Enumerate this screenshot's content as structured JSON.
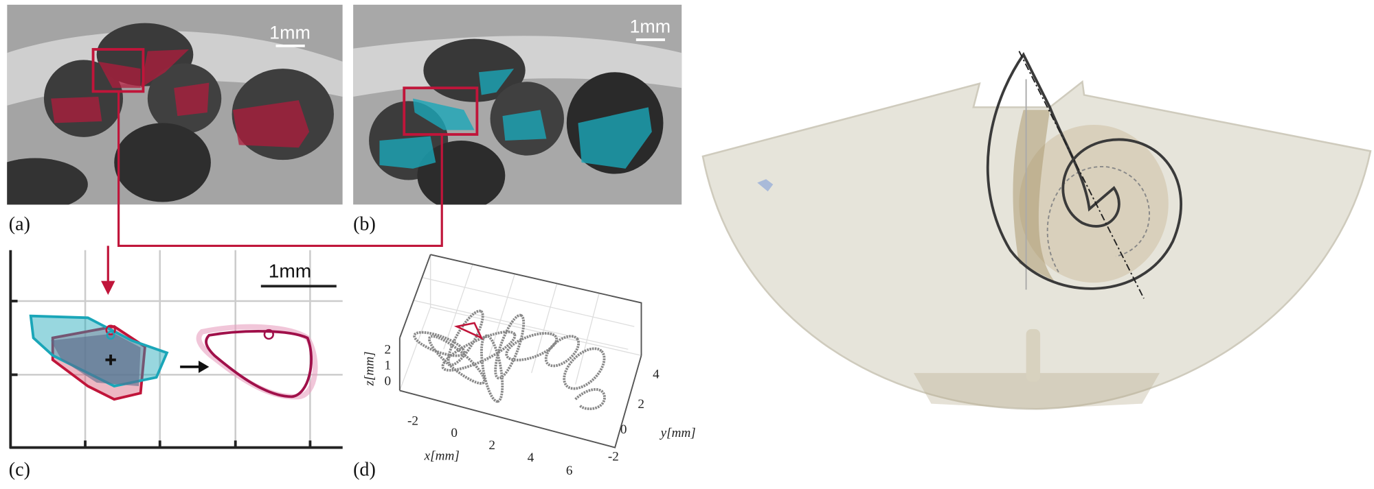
{
  "panels": {
    "a": {
      "label": "(a)",
      "scale_bar": "1mm"
    },
    "b": {
      "label": "(b)",
      "scale_bar": "1mm"
    },
    "c": {
      "label": "(c)",
      "scale_bar": "1mm"
    },
    "d": {
      "label": "(d)",
      "x_axis_label": "x[mm]",
      "y_axis_label": "y[mm]",
      "z_axis_label": "z[mm]",
      "x_ticks": [
        -2,
        0,
        2,
        4,
        6
      ],
      "y_ticks": [
        -2,
        0,
        2,
        4
      ],
      "z_ticks": [
        0,
        1,
        2
      ]
    }
  }
}
